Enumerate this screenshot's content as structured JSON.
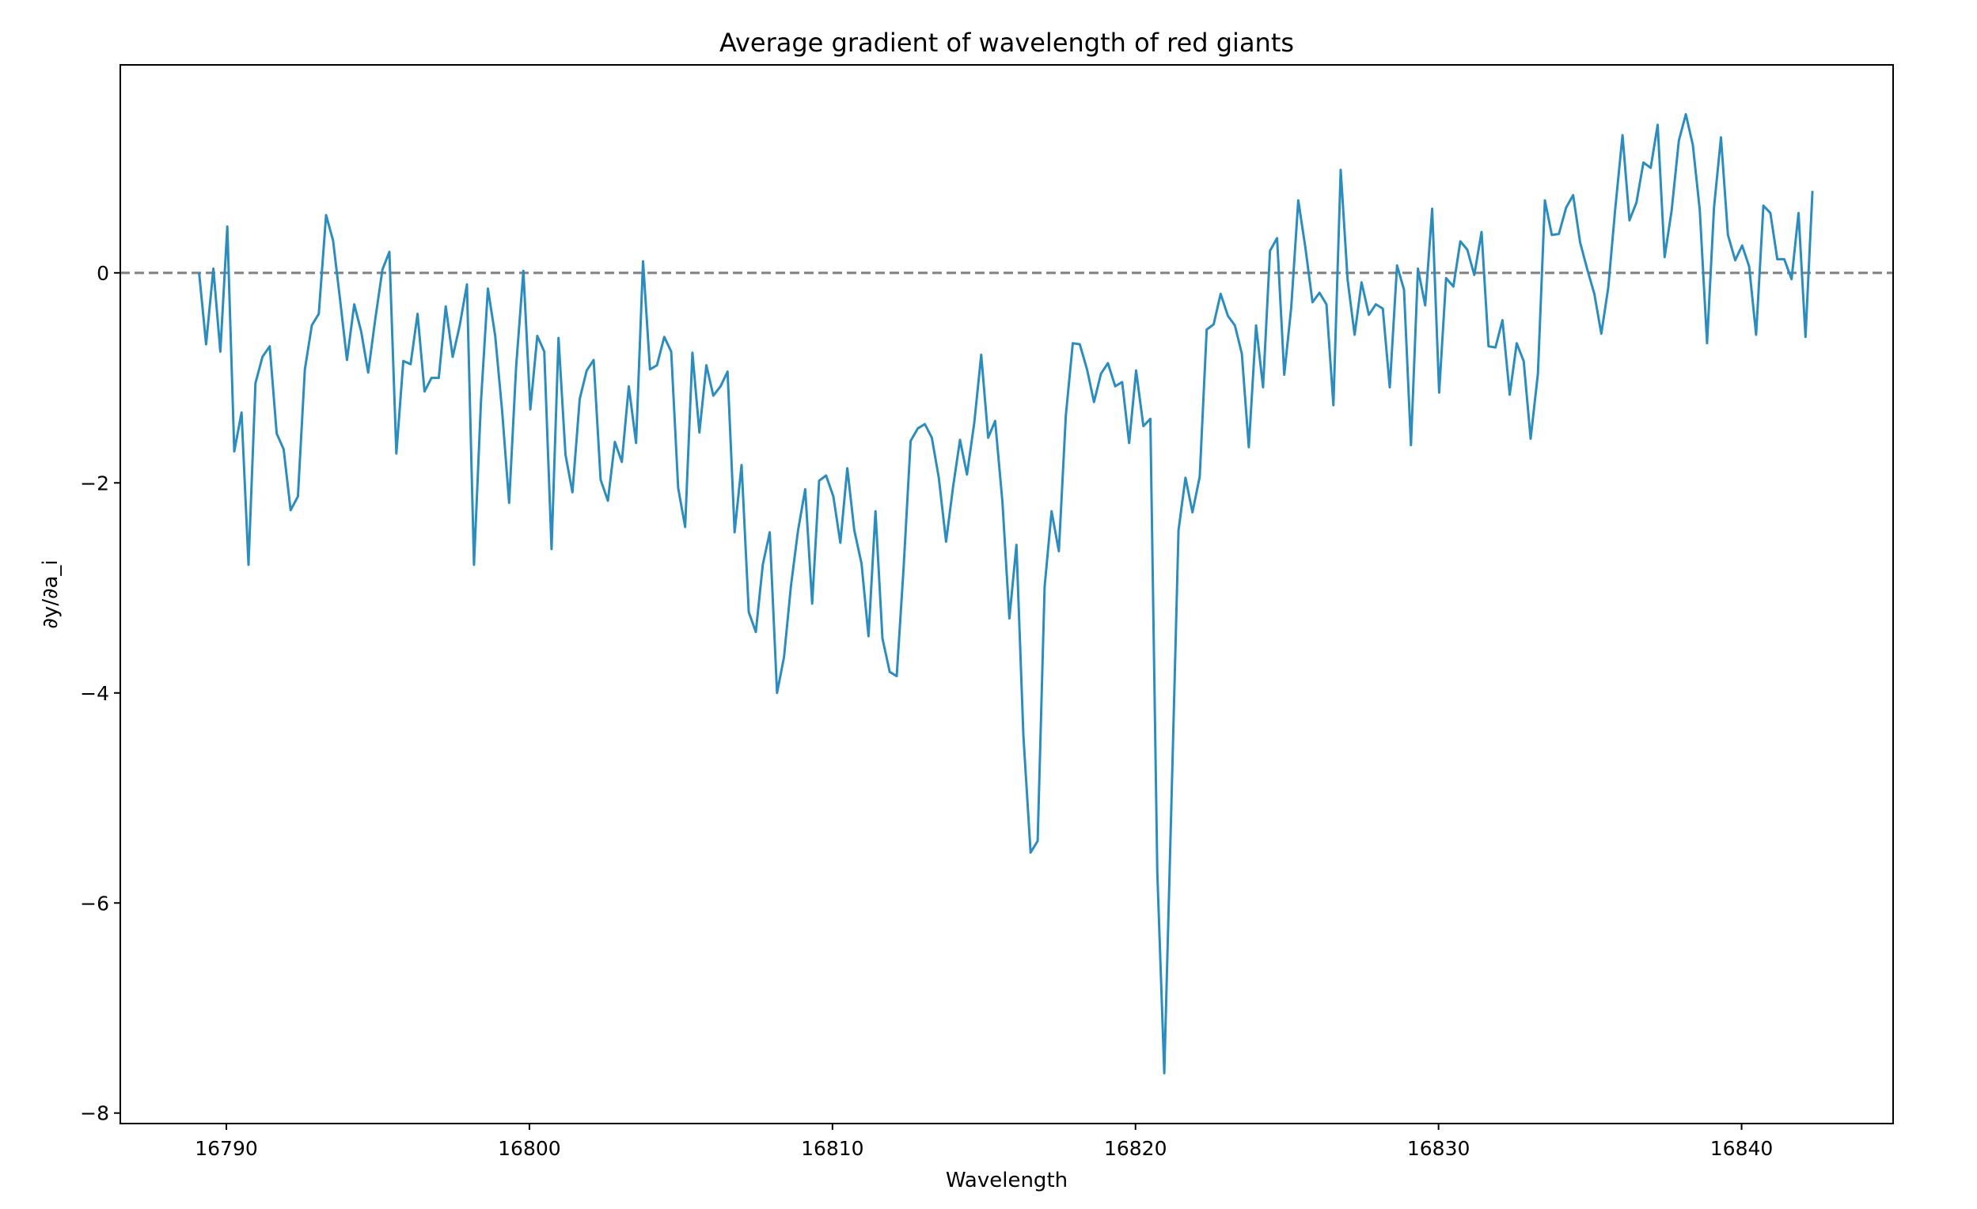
{
  "chart_data": {
    "type": "line",
    "title": "Average gradient of wavelength of red giants",
    "xlabel": "Wavelength",
    "ylabel": "∂y/∂a_i",
    "xlim": [
      16786.5,
      16845
    ],
    "ylim": [
      -8.1,
      1.98
    ],
    "xticks": [
      16790,
      16800,
      16810,
      16820,
      16830,
      16840
    ],
    "xtick_labels": [
      "16790",
      "16800",
      "16810",
      "16820",
      "16830",
      "16840"
    ],
    "yticks": [
      0,
      -2,
      -4,
      -6,
      -8
    ],
    "ytick_labels": [
      "0",
      "−2",
      "−4",
      "−6",
      "−8"
    ],
    "grid": false,
    "reference_line": {
      "y": 0,
      "style": "dashed",
      "color": "#808080"
    },
    "series": [
      {
        "color": "#2b8cbe",
        "x": [
          16789.1,
          16789.33,
          16789.57,
          16789.8,
          16790.03,
          16790.26,
          16790.5,
          16790.73,
          16790.96,
          16791.19,
          16791.43,
          16791.66,
          16791.89,
          16792.12,
          16792.36,
          16792.59,
          16792.82,
          16793.05,
          16793.29,
          16793.52,
          16793.75,
          16793.98,
          16794.22,
          16794.45,
          16794.68,
          16794.91,
          16795.15,
          16795.38,
          16795.61,
          16795.84,
          16796.08,
          16796.31,
          16796.54,
          16796.77,
          16797.01,
          16797.24,
          16797.47,
          16797.7,
          16797.94,
          16798.17,
          16798.4,
          16798.63,
          16798.87,
          16799.1,
          16799.33,
          16799.56,
          16799.8,
          16800.03,
          16800.26,
          16800.49,
          16800.73,
          16800.96,
          16801.19,
          16801.42,
          16801.66,
          16801.89,
          16802.12,
          16802.35,
          16802.59,
          16802.82,
          16803.05,
          16803.28,
          16803.52,
          16803.75,
          16803.98,
          16804.21,
          16804.45,
          16804.68,
          16804.91,
          16805.14,
          16805.38,
          16805.61,
          16805.84,
          16806.07,
          16806.31,
          16806.54,
          16806.77,
          16807.0,
          16807.24,
          16807.47,
          16807.7,
          16807.93,
          16808.17,
          16808.4,
          16808.63,
          16808.86,
          16809.1,
          16809.33,
          16809.56,
          16809.79,
          16810.03,
          16810.26,
          16810.49,
          16810.72,
          16810.96,
          16811.19,
          16811.42,
          16811.65,
          16811.89,
          16812.12,
          16812.35,
          16812.58,
          16812.82,
          16813.05,
          16813.28,
          16813.51,
          16813.75,
          16813.98,
          16814.21,
          16814.44,
          16814.68,
          16814.91,
          16815.14,
          16815.37,
          16815.61,
          16815.84,
          16816.07,
          16816.3,
          16816.54,
          16816.77,
          16817.0,
          16817.23,
          16817.47,
          16817.7,
          16817.93,
          16818.16,
          16818.4,
          16818.63,
          16818.86,
          16819.09,
          16819.33,
          16819.56,
          16819.79,
          16820.02,
          16820.26,
          16820.49,
          16820.72,
          16820.95,
          16821.19,
          16821.42,
          16821.65,
          16821.88,
          16822.12,
          16822.35,
          16822.58,
          16822.81,
          16823.05,
          16823.28,
          16823.51,
          16823.74,
          16823.98,
          16824.21,
          16824.44,
          16824.67,
          16824.91,
          16825.14,
          16825.37,
          16825.6,
          16825.84,
          16826.07,
          16826.3,
          16826.53,
          16826.77,
          16827.0,
          16827.23,
          16827.46,
          16827.7,
          16827.93,
          16828.16,
          16828.39,
          16828.63,
          16828.86,
          16829.09,
          16829.32,
          16829.56,
          16829.79,
          16830.02,
          16830.25,
          16830.49,
          16830.72,
          16830.95,
          16831.18,
          16831.42,
          16831.65,
          16831.88,
          16832.11,
          16832.35,
          16832.58,
          16832.81,
          16833.04,
          16833.28,
          16833.51,
          16833.74,
          16833.97,
          16834.21,
          16834.44,
          16834.67,
          16834.9,
          16835.14,
          16835.37,
          16835.6,
          16835.83,
          16836.07,
          16836.3,
          16836.53,
          16836.76,
          16837.0,
          16837.23,
          16837.46,
          16837.69,
          16837.93,
          16838.16,
          16838.39,
          16838.62,
          16838.86,
          16839.09,
          16839.32,
          16839.55,
          16839.79,
          16840.02,
          16840.25,
          16840.48,
          16840.72,
          16840.95,
          16841.18,
          16841.41,
          16841.65,
          16841.88,
          16842.11,
          16842.34
        ],
        "y": [
          0.0,
          -0.68,
          0.04,
          -0.75,
          0.44,
          -1.7,
          -1.33,
          -2.78,
          -1.05,
          -0.8,
          -0.7,
          -1.53,
          -1.68,
          -2.26,
          -2.13,
          -0.92,
          -0.5,
          -0.39,
          0.55,
          0.31,
          -0.25,
          -0.83,
          -0.3,
          -0.56,
          -0.95,
          -0.45,
          0.03,
          0.2,
          -1.72,
          -0.84,
          -0.87,
          -0.39,
          -1.13,
          -1.0,
          -1.0,
          -0.32,
          -0.8,
          -0.5,
          -0.11,
          -2.78,
          -1.23,
          -0.15,
          -0.6,
          -1.32,
          -2.19,
          -0.9,
          0.02,
          -1.3,
          -0.6,
          -0.75,
          -2.63,
          -0.62,
          -1.73,
          -2.09,
          -1.2,
          -0.93,
          -0.83,
          -1.97,
          -2.17,
          -1.61,
          -1.8,
          -1.08,
          -1.62,
          0.11,
          -0.92,
          -0.88,
          -0.61,
          -0.75,
          -2.05,
          -2.42,
          -0.76,
          -1.52,
          -0.88,
          -1.17,
          -1.08,
          -0.94,
          -2.47,
          -1.83,
          -3.23,
          -3.42,
          -2.78,
          -2.47,
          -4.0,
          -3.66,
          -2.98,
          -2.46,
          -2.06,
          -3.15,
          -1.98,
          -1.93,
          -2.13,
          -2.57,
          -1.86,
          -2.45,
          -2.77,
          -3.46,
          -2.27,
          -3.48,
          -3.8,
          -3.84,
          -2.8,
          -1.6,
          -1.48,
          -1.44,
          -1.57,
          -1.95,
          -2.56,
          -2.04,
          -1.59,
          -1.92,
          -1.43,
          -0.78,
          -1.57,
          -1.41,
          -2.18,
          -3.29,
          -2.59,
          -4.41,
          -5.52,
          -5.41,
          -2.99,
          -2.27,
          -2.65,
          -1.36,
          -0.67,
          -0.68,
          -0.92,
          -1.23,
          -0.96,
          -0.86,
          -1.08,
          -1.04,
          -1.62,
          -0.93,
          -1.46,
          -1.39,
          -5.71,
          -7.62,
          -5.0,
          -2.45,
          -1.95,
          -2.28,
          -1.94,
          -0.54,
          -0.49,
          -0.2,
          -0.41,
          -0.5,
          -0.77,
          -1.66,
          -0.5,
          -1.09,
          0.21,
          0.33,
          -0.97,
          -0.33,
          0.69,
          0.25,
          -0.28,
          -0.19,
          -0.3,
          -1.26,
          0.98,
          -0.07,
          -0.59,
          -0.09,
          -0.4,
          -0.3,
          -0.34,
          -1.09,
          0.07,
          -0.16,
          -1.64,
          0.04,
          -0.31,
          0.61,
          -1.14,
          -0.05,
          -0.13,
          0.3,
          0.22,
          -0.02,
          0.39,
          -0.7,
          -0.71,
          -0.45,
          -1.16,
          -0.67,
          -0.84,
          -1.58,
          -0.96,
          0.69,
          0.36,
          0.37,
          0.62,
          0.74,
          0.29,
          0.04,
          -0.2,
          -0.58,
          -0.14,
          0.61,
          1.31,
          0.5,
          0.67,
          1.05,
          1.0,
          1.41,
          0.15,
          0.59,
          1.26,
          1.51,
          1.22,
          0.6,
          -0.67,
          0.62,
          1.29,
          0.36,
          0.12,
          0.26,
          0.06,
          -0.59,
          0.64,
          0.57,
          0.13,
          0.13,
          -0.06,
          0.57,
          -0.61,
          0.78
        ]
      }
    ]
  }
}
